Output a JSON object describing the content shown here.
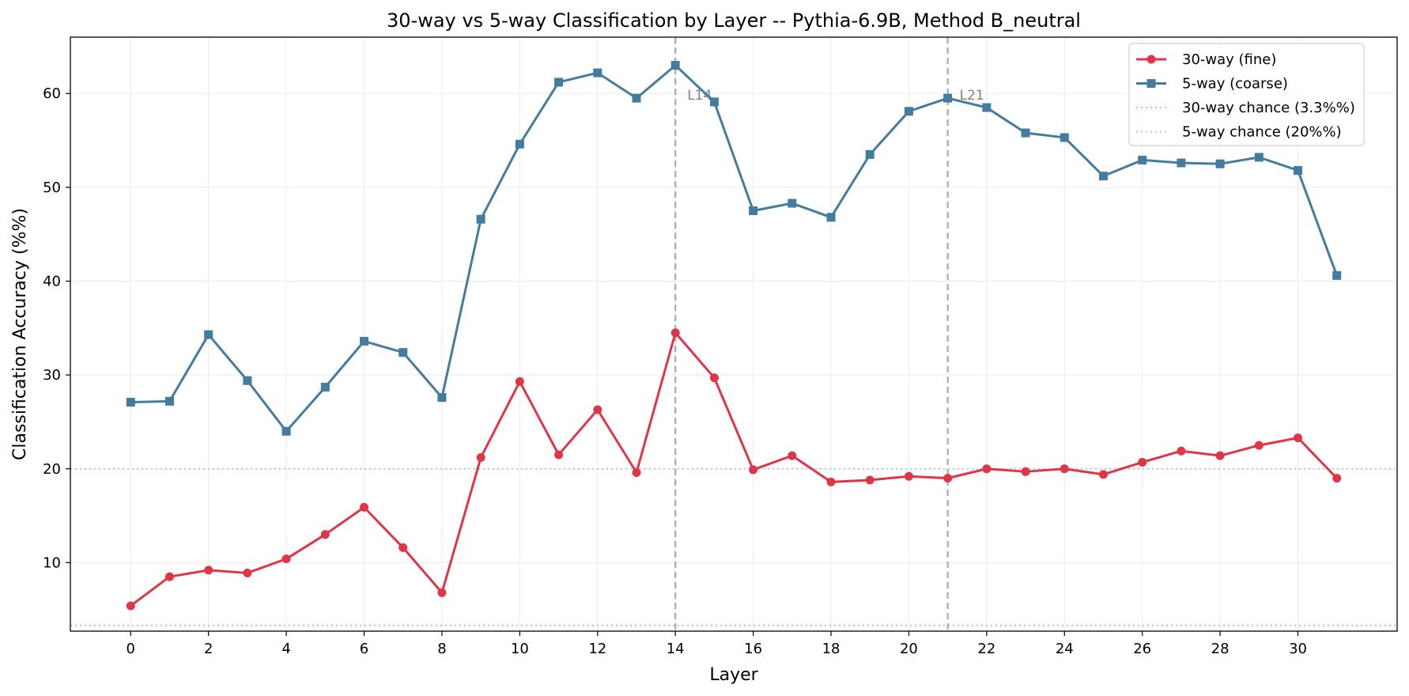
{
  "chart_data": {
    "type": "line",
    "title": "30-way vs 5-way Classification by Layer -- Pythia-6.9B, Method B_neutral",
    "xlabel": "Layer",
    "ylabel": "Classification Accuracy (%%)",
    "xlim": [
      -1.55,
      32.55
    ],
    "ylim": [
      2.7,
      66.0
    ],
    "xticks": [
      0,
      2,
      4,
      6,
      8,
      10,
      12,
      14,
      16,
      18,
      20,
      22,
      24,
      26,
      28,
      30
    ],
    "yticks": [
      10,
      20,
      30,
      40,
      50,
      60
    ],
    "grid": true,
    "legend_position": "top-right",
    "x": [
      0,
      1,
      2,
      3,
      4,
      5,
      6,
      7,
      8,
      9,
      10,
      11,
      12,
      13,
      14,
      15,
      16,
      17,
      18,
      19,
      20,
      21,
      22,
      23,
      24,
      25,
      26,
      27,
      28,
      29,
      30,
      31
    ],
    "series": [
      {
        "name": "30-way (fine)",
        "color": "#e03546",
        "marker": "circle",
        "values": [
          5.4,
          8.5,
          9.2,
          8.9,
          10.4,
          13.0,
          15.9,
          11.6,
          6.8,
          21.2,
          29.3,
          21.5,
          26.3,
          19.6,
          34.5,
          29.7,
          19.9,
          21.4,
          18.6,
          18.8,
          19.2,
          19.0,
          20.0,
          19.7,
          20.0,
          19.4,
          20.7,
          21.9,
          21.4,
          22.5,
          23.3,
          19.0
        ]
      },
      {
        "name": "5-way (coarse)",
        "color": "#437c9f",
        "marker": "square",
        "values": [
          27.1,
          27.2,
          34.3,
          29.4,
          24.0,
          28.7,
          33.6,
          32.4,
          27.6,
          46.6,
          54.6,
          61.2,
          62.2,
          59.5,
          63.0,
          59.1,
          47.5,
          48.3,
          46.8,
          53.5,
          58.1,
          59.5,
          58.5,
          55.8,
          55.3,
          51.2,
          52.9,
          52.6,
          52.5,
          53.2,
          51.8,
          40.6
        ]
      }
    ],
    "reference_lines": [
      {
        "name": "30-way chance (3.3%%)",
        "value": 3.3,
        "color": "#f4a6aa",
        "style": "dotted"
      },
      {
        "name": "5-way chance (20%%)",
        "value": 20,
        "color": "#a9c9e0",
        "style": "dotted"
      }
    ],
    "vertical_markers": [
      {
        "label": "L14",
        "x": 14,
        "color": "#aaaaaa"
      },
      {
        "label": "L21",
        "x": 21,
        "color": "#aaaaaa"
      }
    ]
  }
}
